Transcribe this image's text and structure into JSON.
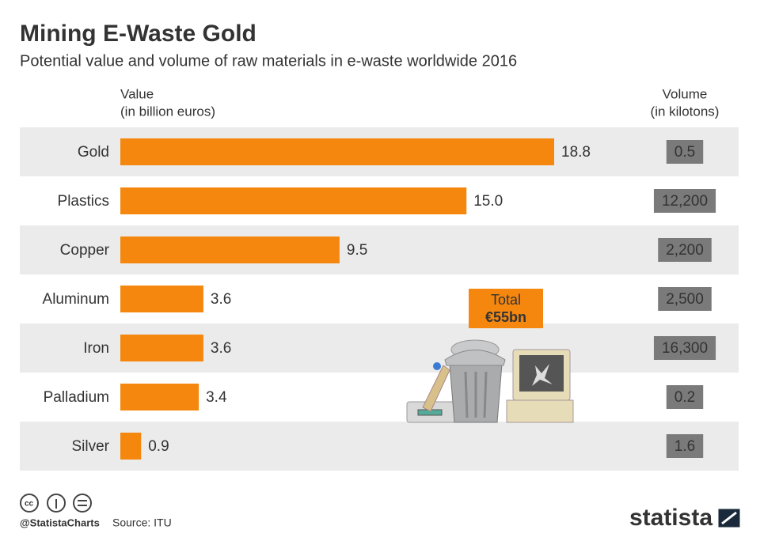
{
  "chart_data": {
    "type": "bar",
    "title": "Mining E-Waste Gold",
    "subtitle": "Potential value and volume of raw materials in e-waste worldwide 2016",
    "value_header": [
      "Value",
      "(in billion euros)"
    ],
    "volume_header": [
      "Volume",
      "(in kilotons)"
    ],
    "categories": [
      "Gold",
      "Plastics",
      "Copper",
      "Aluminum",
      "Iron",
      "Palladium",
      "Silver"
    ],
    "values": [
      18.8,
      15.0,
      9.5,
      3.6,
      3.6,
      3.4,
      0.9
    ],
    "value_labels": [
      "18.8",
      "15.0",
      "9.5",
      "3.6",
      "3.6",
      "3.4",
      "0.9"
    ],
    "color": "#f5870f",
    "volume": {
      "values": [
        0.5,
        12200,
        2200,
        2500,
        16300,
        0.2,
        1.6
      ],
      "value_labels": [
        "0.5",
        "12,200",
        "2,200",
        "2,500",
        "16,300",
        "0.2",
        "1.6"
      ],
      "color": "#7a7a7a"
    },
    "annotation": [
      "Total",
      "€55bn"
    ],
    "handle": "@StatistaCharts",
    "source": "Source: ITU",
    "brand": "statista"
  }
}
